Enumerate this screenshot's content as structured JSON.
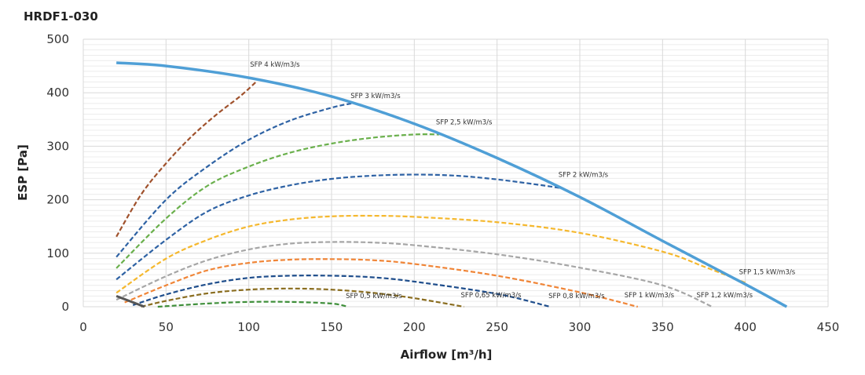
{
  "chart_data": {
    "type": "line",
    "title": "HRDF1-030",
    "xlabel": "Airflow [m³/h]",
    "ylabel": "ESP [Pa]",
    "xlim": [
      0,
      450
    ],
    "ylim": [
      0,
      500
    ],
    "x_ticks": [
      "0",
      "50",
      "100",
      "150",
      "200",
      "250",
      "300",
      "350",
      "400",
      "450"
    ],
    "y_ticks": [
      "0",
      "100",
      "200",
      "300",
      "400",
      "500"
    ],
    "grid": true,
    "fan_curve": {
      "color": "#4f9fd6",
      "points": [
        [
          20,
          456
        ],
        [
          50,
          450
        ],
        [
          100,
          428
        ],
        [
          150,
          393
        ],
        [
          200,
          342
        ],
        [
          250,
          278
        ],
        [
          300,
          205
        ],
        [
          350,
          123
        ],
        [
          400,
          42
        ],
        [
          425,
          0
        ]
      ]
    },
    "series": [
      {
        "label": "SFP 4 kW/m3/s",
        "color": "#a0522d",
        "points": [
          [
            20,
            131
          ],
          [
            35,
            210
          ],
          [
            50,
            268
          ],
          [
            65,
            317
          ],
          [
            80,
            358
          ],
          [
            95,
            394
          ],
          [
            105,
            422
          ]
        ]
      },
      {
        "label": "SFP 3 kW/m3/s",
        "color": "#2e62a4",
        "points": [
          [
            20,
            93
          ],
          [
            50,
            200
          ],
          [
            75,
            262
          ],
          [
            100,
            312
          ],
          [
            125,
            348
          ],
          [
            150,
            372
          ],
          [
            162,
            380
          ]
        ]
      },
      {
        "label": "SFP 2,5 kW/m3/s",
        "color": "#6ab04c",
        "points": [
          [
            20,
            72
          ],
          [
            50,
            165
          ],
          [
            75,
            226
          ],
          [
            100,
            262
          ],
          [
            125,
            288
          ],
          [
            150,
            305
          ],
          [
            175,
            316
          ],
          [
            200,
            322
          ],
          [
            215,
            322
          ]
        ]
      },
      {
        "label": "SFP 2 kW/m3/s",
        "color": "#2e62a4",
        "points": [
          [
            20,
            51
          ],
          [
            50,
            125
          ],
          [
            75,
            178
          ],
          [
            100,
            208
          ],
          [
            125,
            227
          ],
          [
            150,
            239
          ],
          [
            175,
            245
          ],
          [
            200,
            247
          ],
          [
            225,
            245
          ],
          [
            250,
            238
          ],
          [
            275,
            228
          ],
          [
            288,
            222
          ]
        ]
      },
      {
        "label": "SFP 1,5 kW/m3/s",
        "color": "#f5b82e",
        "points": [
          [
            20,
            26
          ],
          [
            50,
            90
          ],
          [
            75,
            125
          ],
          [
            100,
            150
          ],
          [
            125,
            163
          ],
          [
            150,
            169
          ],
          [
            175,
            170
          ],
          [
            200,
            168
          ],
          [
            250,
            158
          ],
          [
            300,
            138
          ],
          [
            350,
            103
          ],
          [
            375,
            75
          ],
          [
            400,
            45
          ]
        ]
      },
      {
        "label": "SFP 1,2 kW/m3/s",
        "color": "#a6a6a6",
        "points": [
          [
            20,
            13
          ],
          [
            50,
            57
          ],
          [
            75,
            87
          ],
          [
            100,
            107
          ],
          [
            125,
            118
          ],
          [
            150,
            121
          ],
          [
            175,
            120
          ],
          [
            200,
            115
          ],
          [
            250,
            98
          ],
          [
            300,
            73
          ],
          [
            350,
            40
          ],
          [
            380,
            0
          ]
        ]
      },
      {
        "label": "SFP 1 kW/m3/s",
        "color": "#f08537",
        "points": [
          [
            25,
            8
          ],
          [
            50,
            40
          ],
          [
            75,
            68
          ],
          [
            100,
            82
          ],
          [
            125,
            88
          ],
          [
            150,
            89
          ],
          [
            175,
            87
          ],
          [
            200,
            80
          ],
          [
            250,
            58
          ],
          [
            300,
            27
          ],
          [
            335,
            0
          ]
        ]
      },
      {
        "label": "SFP 0,8 kW/m3/s",
        "color": "#1f4e8c",
        "points": [
          [
            30,
            3
          ],
          [
            50,
            23
          ],
          [
            75,
            42
          ],
          [
            100,
            54
          ],
          [
            125,
            58
          ],
          [
            150,
            58
          ],
          [
            175,
            55
          ],
          [
            200,
            47
          ],
          [
            250,
            24
          ],
          [
            282,
            0
          ]
        ]
      },
      {
        "label": "SFP 0,65 kW/m3/s",
        "color": "#8a6d1f",
        "points": [
          [
            35,
            0
          ],
          [
            50,
            11
          ],
          [
            75,
            25
          ],
          [
            100,
            32
          ],
          [
            125,
            34
          ],
          [
            150,
            32
          ],
          [
            175,
            26
          ],
          [
            200,
            16
          ],
          [
            230,
            0
          ]
        ]
      },
      {
        "label": "SFP 0,5 kW/m3/s",
        "color": "#3f8f3a",
        "points": [
          [
            45,
            0
          ],
          [
            75,
            6
          ],
          [
            100,
            9
          ],
          [
            125,
            9
          ],
          [
            150,
            6
          ],
          [
            160,
            0
          ]
        ]
      }
    ],
    "min_curve": {
      "color": "#555555",
      "points": [
        [
          20,
          20
        ],
        [
          37,
          0
        ]
      ]
    }
  }
}
